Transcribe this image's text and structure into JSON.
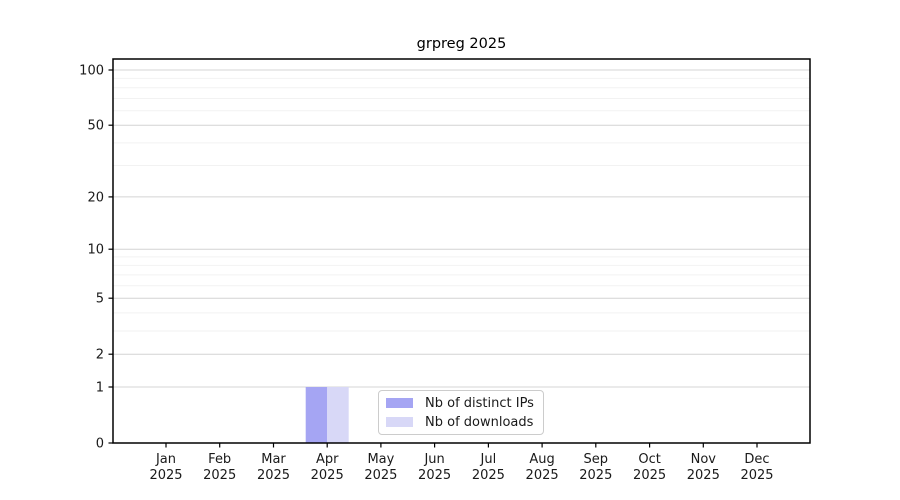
{
  "window": {
    "background": "#ffffff"
  },
  "chart_data": {
    "type": "bar",
    "title": "grpreg 2025",
    "categories": [
      "Jan",
      "Feb",
      "Mar",
      "Apr",
      "May",
      "Jun",
      "Jul",
      "Aug",
      "Sep",
      "Oct",
      "Nov",
      "Dec"
    ],
    "category_year": "2025",
    "series": [
      {
        "name": "Nb of distinct IPs",
        "color": "#a5a5f3",
        "values": [
          0,
          0,
          0,
          1,
          0,
          0,
          0,
          0,
          0,
          0,
          0,
          0
        ]
      },
      {
        "name": "Nb of downloads",
        "color": "#d8d8f7",
        "values": [
          0,
          0,
          0,
          1,
          0,
          0,
          0,
          0,
          0,
          0,
          0,
          0
        ]
      }
    ],
    "xlabel": "",
    "ylabel": "",
    "yscale": "log1p",
    "ylim": [
      0,
      110
    ],
    "yticks": [
      0,
      1,
      2,
      5,
      10,
      20,
      50,
      100
    ],
    "yticks_minor": [
      3,
      4,
      6,
      7,
      8,
      9,
      30,
      40,
      60,
      70,
      80,
      90
    ],
    "grid": "horizontal",
    "legend_position": "inside-bottom-center",
    "colors": {
      "grid_major": "#d4d4d4",
      "grid_minor": "#f2f2f2",
      "axis": "#000000",
      "text": "#1a1a1a",
      "legend_border": "#cccccc"
    }
  }
}
